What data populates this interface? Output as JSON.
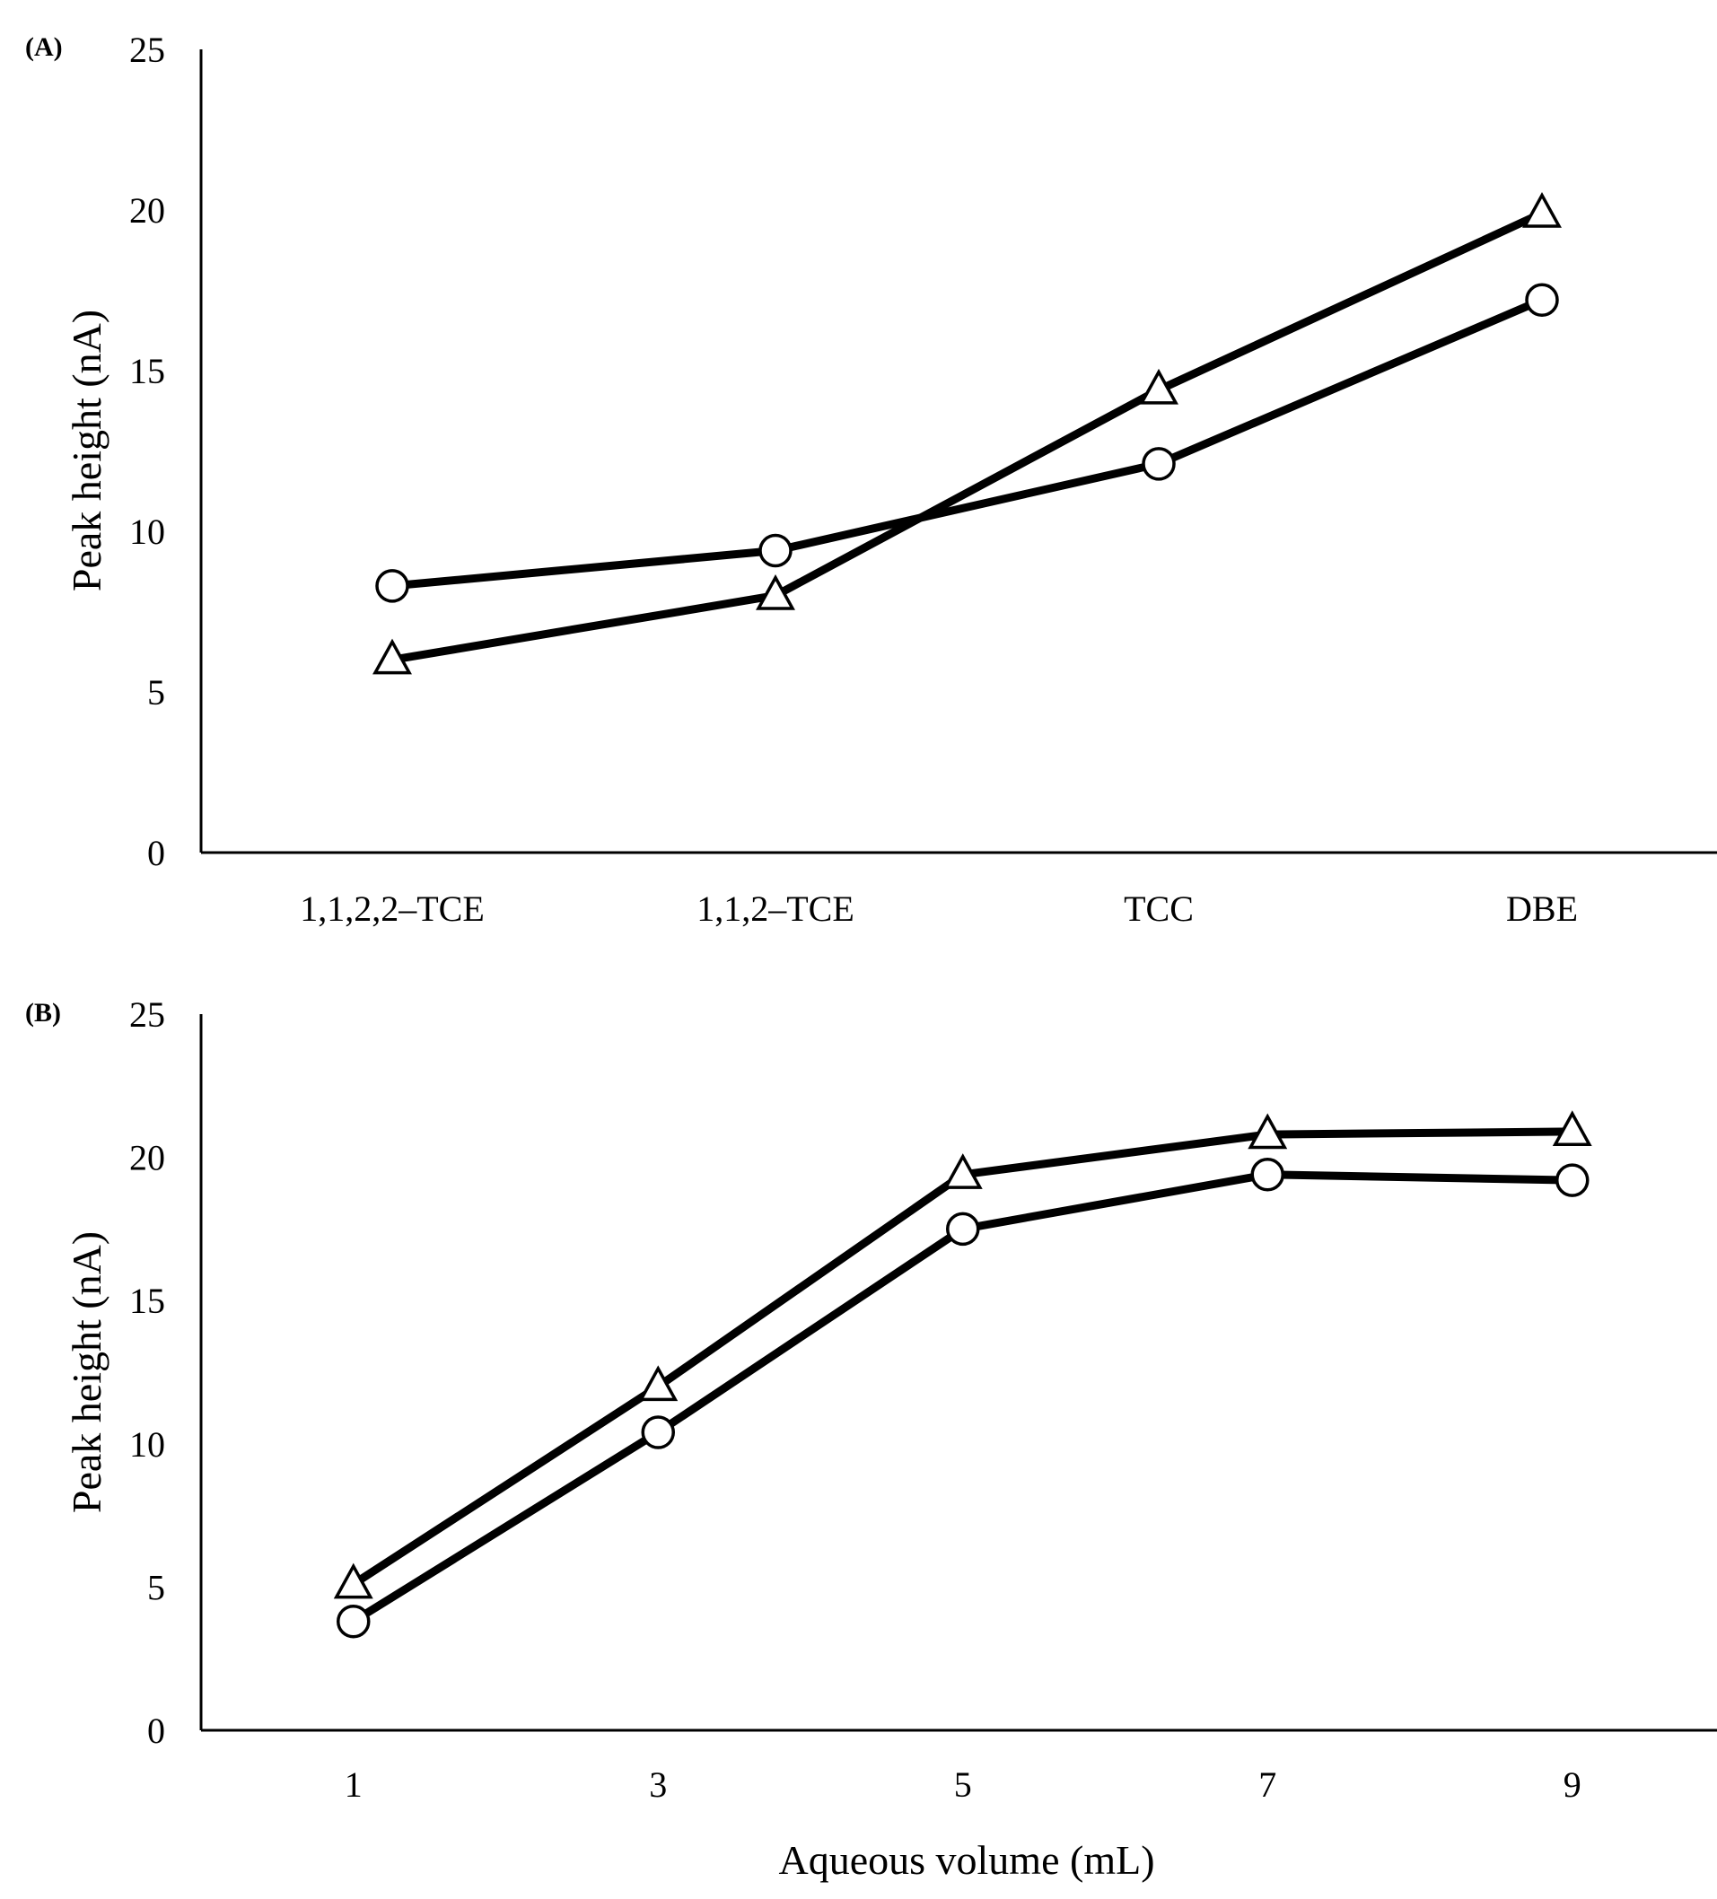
{
  "chart_data": [
    {
      "panel_label": "(A)",
      "type": "line",
      "x_scale": "categorical",
      "categories": [
        "1,1,2,2–TCE",
        "1,1,2–TCE",
        "TCC",
        "DBE"
      ],
      "ylabel": "Peak height (nA)",
      "xlabel": "",
      "ylim": [
        0,
        25
      ],
      "yticks": [
        "0",
        "5",
        "10",
        "15",
        "20",
        "25"
      ],
      "grid": false,
      "legend": "none",
      "series": [
        {
          "name": "circle",
          "marker": "circle",
          "values": [
            8.3,
            9.4,
            12.1,
            17.2
          ]
        },
        {
          "name": "triangle",
          "marker": "triangle",
          "values": [
            6.0,
            8.0,
            14.4,
            19.9
          ]
        }
      ]
    },
    {
      "panel_label": "(B)",
      "type": "line",
      "x_scale": "numeric",
      "x": [
        1,
        3,
        5,
        7,
        9
      ],
      "xticks": [
        "1",
        "3",
        "5",
        "7",
        "9"
      ],
      "xlim": [
        0,
        9.95
      ],
      "xlabel": "Aqueous volume (mL)",
      "ylabel": "Peak height (nA)",
      "ylim": [
        0,
        25
      ],
      "yticks": [
        "0",
        "5",
        "10",
        "15",
        "20",
        "25"
      ],
      "grid": false,
      "legend": "none",
      "series": [
        {
          "name": "circle",
          "marker": "circle",
          "values": [
            3.8,
            10.4,
            17.5,
            19.4,
            19.2
          ]
        },
        {
          "name": "triangle",
          "marker": "triangle",
          "values": [
            5.1,
            12.0,
            19.4,
            20.8,
            20.9
          ]
        }
      ]
    }
  ]
}
